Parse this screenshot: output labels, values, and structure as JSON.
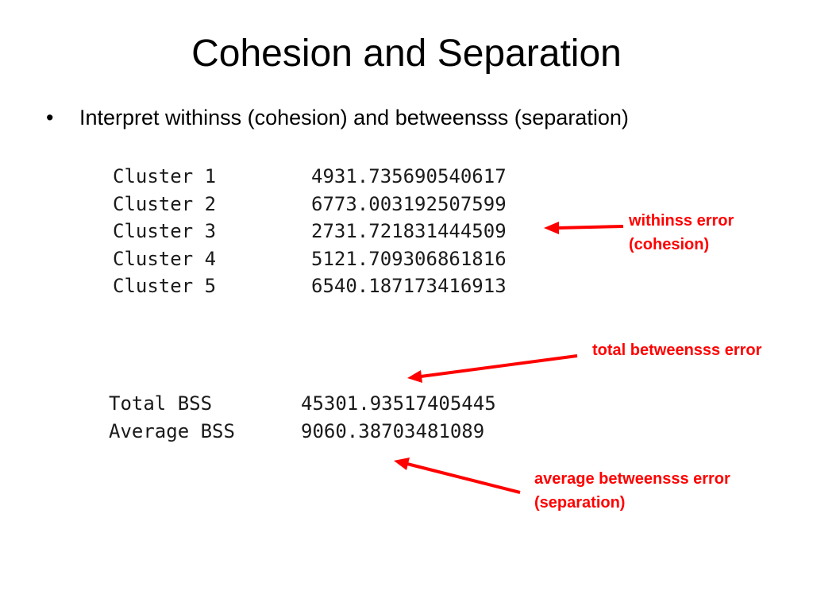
{
  "slide": {
    "title": "Cohesion and Separation",
    "bullet": "Interpret withinss (cohesion) and betweensss (separation)"
  },
  "withinss_output": [
    {
      "label": "Cluster 1",
      "value": "4931.735690540617"
    },
    {
      "label": "Cluster 2",
      "value": "6773.003192507599"
    },
    {
      "label": "Cluster 3",
      "value": "2731.721831444509"
    },
    {
      "label": "Cluster 4",
      "value": "5121.709306861816"
    },
    {
      "label": "Cluster 5",
      "value": "6540.187173416913"
    }
  ],
  "betweenss_output": [
    {
      "label": "Total BSS",
      "value": "45301.93517405445"
    },
    {
      "label": "Average BSS",
      "value": "9060.38703481089"
    }
  ],
  "annotations": {
    "withinss": [
      "withinss error",
      "(cohesion)"
    ],
    "total": "total betweensss error",
    "average": [
      "average betweensss error",
      "(separation)"
    ]
  },
  "colors": {
    "annotation": "#ff0000"
  }
}
